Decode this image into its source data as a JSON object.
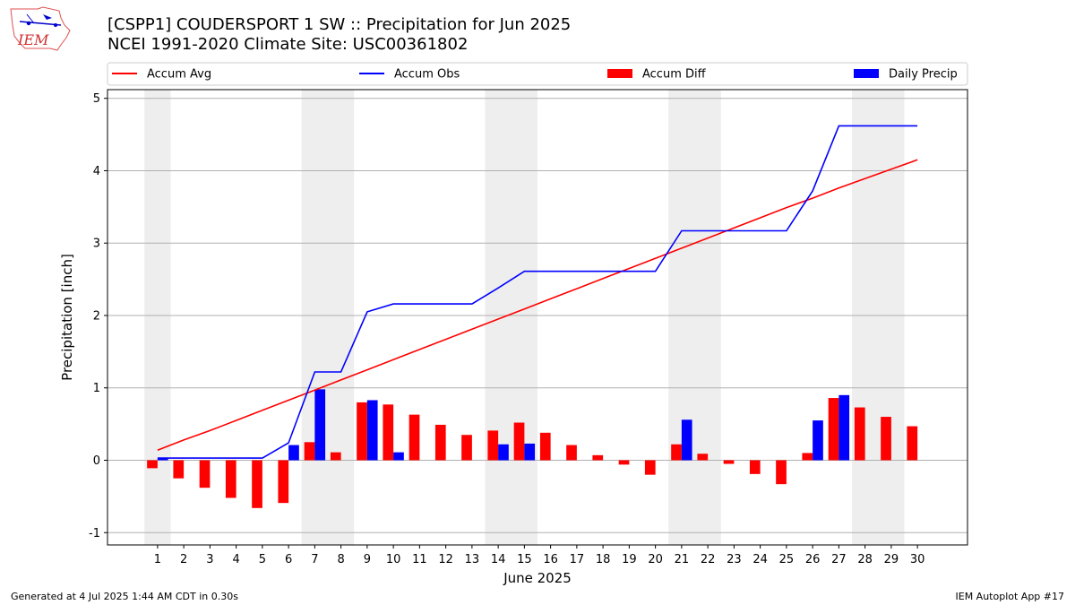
{
  "header": {
    "title": "[CSPP1] COUDERSPORT 1 SW :: Precipitation for Jun 2025",
    "subtitle": "NCEI 1991-2020 Climate Site: USC00361802",
    "logo_text": "IEM"
  },
  "footer": {
    "generated": "Generated at 4 Jul 2025 1:44 AM CDT in 0.30s",
    "app": "IEM Autoplot App #17"
  },
  "colors": {
    "accum_avg": "#ff0000",
    "accum_obs": "#0000ff",
    "accum_diff": "#ff0000",
    "daily_precip": "#0000ff",
    "weekend_band": "#eeeeee",
    "grid": "#b0b0b0"
  },
  "chart_data": {
    "type": "bar",
    "xlabel": "June 2025",
    "ylabel": "Precipitation [inch]",
    "ylim": [
      -1.17,
      5.12
    ],
    "yticks": [
      -1,
      0,
      1,
      2,
      3,
      4,
      5
    ],
    "grid": "y",
    "legend_position": "top",
    "days": [
      1,
      2,
      3,
      4,
      5,
      6,
      7,
      8,
      9,
      10,
      11,
      12,
      13,
      14,
      15,
      16,
      17,
      18,
      19,
      20,
      21,
      22,
      23,
      24,
      25,
      26,
      27,
      28,
      29,
      30
    ],
    "weekend_days": [
      1,
      7,
      8,
      14,
      15,
      21,
      22,
      28,
      29
    ],
    "series": [
      {
        "name": "Accum Avg",
        "kind": "line",
        "values": [
          0.14,
          0.28,
          0.41,
          0.55,
          0.69,
          0.83,
          0.97,
          1.11,
          1.25,
          1.39,
          1.53,
          1.67,
          1.81,
          1.95,
          2.09,
          2.23,
          2.37,
          2.51,
          2.65,
          2.79,
          2.93,
          3.07,
          3.21,
          3.35,
          3.49,
          3.62,
          3.76,
          3.89,
          4.02,
          4.15
        ]
      },
      {
        "name": "Accum Obs",
        "kind": "line",
        "values": [
          0.03,
          0.03,
          0.03,
          0.03,
          0.03,
          0.24,
          1.22,
          1.22,
          2.05,
          2.16,
          2.16,
          2.16,
          2.16,
          2.38,
          2.61,
          2.61,
          2.61,
          2.61,
          2.61,
          2.61,
          3.17,
          3.17,
          3.17,
          3.17,
          3.17,
          3.72,
          4.62,
          4.62,
          4.62,
          4.62
        ]
      },
      {
        "name": "Accum Diff",
        "kind": "bar",
        "values": [
          -0.11,
          -0.25,
          -0.38,
          -0.52,
          -0.66,
          -0.59,
          0.25,
          0.11,
          0.8,
          0.77,
          0.63,
          0.49,
          0.35,
          0.41,
          0.52,
          0.38,
          0.21,
          0.07,
          -0.06,
          -0.2,
          0.22,
          0.09,
          -0.05,
          -0.19,
          -0.33,
          0.1,
          0.86,
          0.73,
          0.6,
          0.47
        ]
      },
      {
        "name": "Daily Precip",
        "kind": "bar",
        "values": [
          0.03,
          0,
          0,
          0,
          0,
          0.21,
          0.98,
          0,
          0.83,
          0.11,
          0,
          0,
          0,
          0.22,
          0.23,
          0,
          0,
          0,
          0,
          0,
          0.56,
          0,
          0,
          0,
          0,
          0.55,
          0.9,
          0,
          0,
          0
        ]
      }
    ]
  }
}
